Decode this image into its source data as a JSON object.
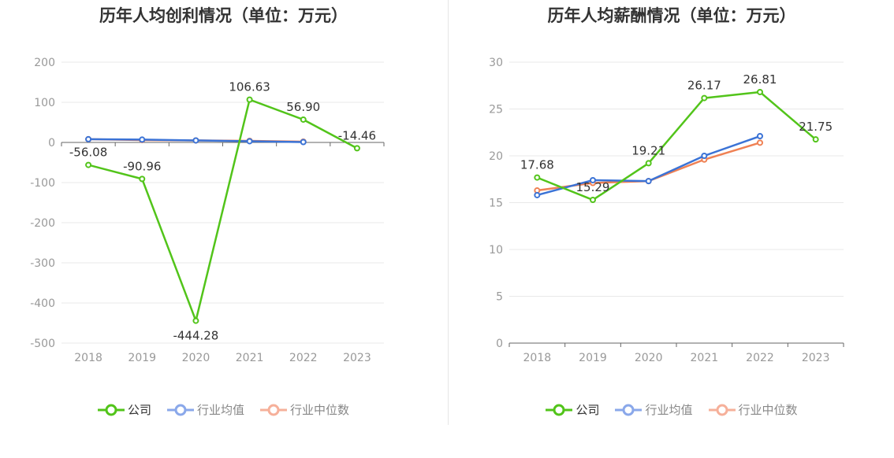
{
  "colors": {
    "company": "#52c41a",
    "industry_avg": "#3b73d6",
    "industry_median": "#ef8154",
    "legend_avg": "#8aa8ea",
    "legend_median": "#f6b09a",
    "axis_text": "#999999",
    "grid": "#e8e8e8",
    "label_text": "#333333"
  },
  "legend": {
    "company": "公司",
    "industry_avg": "行业均值",
    "industry_median": "行业中位数"
  },
  "chart_data": [
    {
      "type": "line",
      "title": "历年人均创利情况（单位：万元）",
      "categories": [
        "2018",
        "2019",
        "2020",
        "2021",
        "2022",
        "2023"
      ],
      "ylim": [
        -500,
        200
      ],
      "yticks": [
        200,
        100,
        0,
        -100,
        -200,
        -300,
        -400,
        -500
      ],
      "grid": true,
      "legend_position": "bottom",
      "series": [
        {
          "name": "公司",
          "values": [
            -56.08,
            -90.96,
            -444.28,
            106.63,
            56.9,
            -14.46
          ],
          "labels": [
            "-56.08",
            "-90.96",
            "-444.28",
            "106.63",
            "56.90",
            "-14.46"
          ]
        },
        {
          "name": "行业均值",
          "values": [
            8,
            7,
            5,
            3,
            1,
            null
          ]
        },
        {
          "name": "行业中位数",
          "values": [
            8,
            6,
            5,
            4,
            2,
            null
          ]
        }
      ]
    },
    {
      "type": "line",
      "title": "历年人均薪酬情况（单位：万元）",
      "categories": [
        "2018",
        "2019",
        "2020",
        "2021",
        "2022",
        "2023"
      ],
      "ylim": [
        0,
        30
      ],
      "yticks": [
        30,
        25,
        20,
        15,
        10,
        5,
        0
      ],
      "grid": true,
      "legend_position": "bottom",
      "series": [
        {
          "name": "公司",
          "values": [
            17.68,
            15.29,
            19.21,
            26.17,
            26.81,
            21.75
          ],
          "labels": [
            "17.68",
            "15.29",
            "19.21",
            "26.17",
            "26.81",
            "21.75"
          ]
        },
        {
          "name": "行业均值",
          "values": [
            15.8,
            17.4,
            17.3,
            20.0,
            22.1,
            null
          ]
        },
        {
          "name": "行业中位数",
          "values": [
            16.3,
            17.1,
            17.3,
            19.6,
            21.4,
            null
          ]
        }
      ]
    }
  ]
}
